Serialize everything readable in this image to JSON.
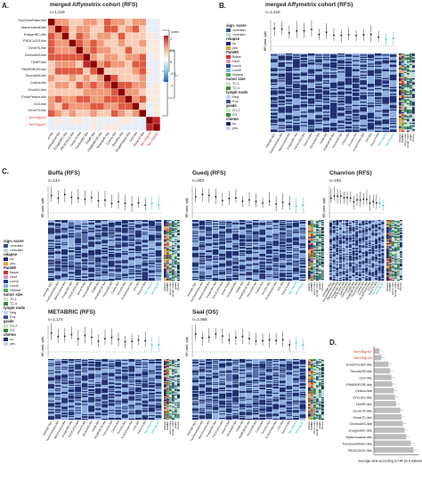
{
  "panel_a": {
    "label": "A.",
    "title": "merged Affymetrix cohort (RFS)",
    "n": "n=1,416",
    "colorbar_label": "correl.",
    "colorbar_ticks": [
      "1",
      "0.5",
      "0",
      "-0.5",
      "-1"
    ],
    "rows": [
      "TwoGeneRatio-like",
      "Mammostrat-like",
      "ExagenBC-like",
      "PIK3CAGS-like",
      "Gene76-like",
      "GeniusM3-like",
      "TAMR-like",
      "PAM50ROR-like",
      "Toronto95-like",
      "Celera-like",
      "OncoDx-like",
      "EndoPredict-like",
      "GGI-like",
      "Gene70-like",
      "NervSign24",
      "NervSign97"
    ],
    "highlight_rows": [
      "NervSign24",
      "NervSign97"
    ]
  },
  "panel_b": {
    "label": "B.",
    "title": "merged Affymetrix cohort (RFS)",
    "n": "n=1,416",
    "hr_label": "HR (med. split)"
  },
  "panel_c": {
    "label": "C.",
    "cohorts": [
      {
        "title": "Buffa (RFS)",
        "n": "n=134"
      },
      {
        "title": "Guedj (RFS)",
        "n": "n=303"
      },
      {
        "title": "Chanrion (RFS)",
        "n": "n=155"
      },
      {
        "title": "METABRIC (RFS)",
        "n": "n=1,174"
      },
      {
        "title": "Saal (OS)",
        "n": "n=2,966"
      }
    ]
  },
  "legend": {
    "sign_score": {
      "title": "sign. score",
      "items": [
        ">median",
        "<median"
      ],
      "colors": [
        "#3b4f93",
        "#c3d4ee"
      ]
    },
    "relapse": {
      "title": "relapse",
      "items": [
        "no",
        "yes"
      ],
      "colors": [
        "#1c2a6b",
        "#e8a23a"
      ]
    },
    "pam50": {
      "title": "Pam50",
      "items": [
        "Basal",
        "Her2",
        "LumA",
        "LumB",
        "Normal"
      ],
      "colors": [
        "#d9342b",
        "#e88fbf",
        "#1f3f9a",
        "#7bb6e6",
        "#4daf4a"
      ]
    },
    "tumor_size": {
      "title": "tumor size",
      "items": [
        "T0-1",
        "T2-4"
      ],
      "colors": [
        "#c9e6c3",
        "#3a8a3a"
      ]
    },
    "lymph_node": {
      "title": "lymph node",
      "items": [
        "Neg",
        "Pos"
      ],
      "colors": [
        "#c3d4ee",
        "#3b4f93"
      ]
    },
    "grade": {
      "title": "grade",
      "items": [
        "G1-2",
        "G3"
      ],
      "colors": [
        "#c9e6c3",
        "#2f8c3a"
      ]
    },
    "chemo": {
      "title": "chemo",
      "items": [
        "no",
        "yes"
      ],
      "colors": [
        "#1c2a6b",
        "#c3d4ee"
      ]
    }
  },
  "panel_d": {
    "label": "D.",
    "xlabel": "average rank according to HR (in 6 datasets)",
    "labels": [
      "NervSign97",
      "NervSign24",
      "EndoPredict-like",
      "Toronto95-like",
      "GGI-like",
      "PAM50ROR-like",
      "Celera-like",
      "OncoDx-like",
      "TAMR-like",
      "Gene76-like",
      "Gene70-like",
      "GeniusM3-like",
      "ExagenBC-like",
      "Mammostrat-like",
      "TwoGeneRatio-like",
      "PIK3CAGS-like"
    ],
    "highlight": [
      "NervSign97",
      "NervSign24"
    ]
  },
  "chart_data": {
    "type": "bar",
    "title": "",
    "xlabel": "average rank according to HR (in 6 datasets)",
    "ylabel": "",
    "categories": [
      "NervSign97",
      "NervSign24",
      "EndoPredict-like",
      "Toronto95-like",
      "GGI-like",
      "PAM50ROR-like",
      "Celera-like",
      "OncoDx-like",
      "TAMR-like",
      "Gene76-like",
      "Gene70-like",
      "GeniusM3-like",
      "ExagenBC-like",
      "Mammostrat-like",
      "TwoGeneRatio-like",
      "PIK3CAGS-like"
    ],
    "values": [
      2.0,
      2.7,
      5.2,
      5.8,
      6.3,
      6.6,
      7.2,
      7.6,
      8.0,
      9.5,
      9.9,
      10.4,
      11.0,
      11.6,
      13.3,
      14.2
    ],
    "xlim": [
      0,
      16
    ]
  }
}
